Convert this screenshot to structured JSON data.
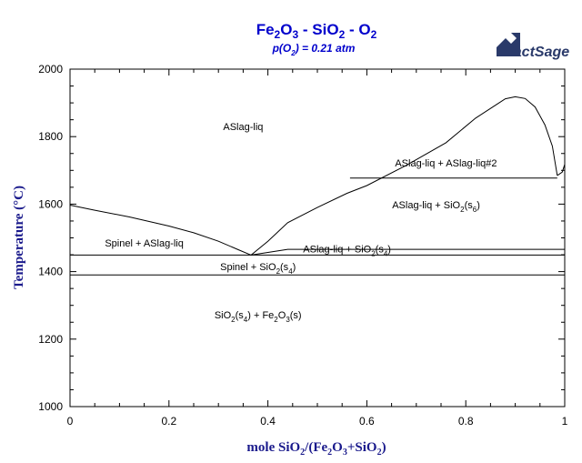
{
  "chart_data": {
    "type": "phase-diagram",
    "title": "Fe2O3 - SiO2 - O2",
    "subtitle": "p(O2) = 0.21 atm",
    "xlabel": "mole SiO2/(Fe2O3+SiO2)",
    "ylabel": "Temperature (°C)",
    "xlim": [
      0,
      1
    ],
    "ylim": [
      1000,
      2000
    ],
    "x_ticks": [
      "0",
      "0.2",
      "0.4",
      "0.6",
      "0.8",
      "1"
    ],
    "y_ticks": [
      "1000",
      "1200",
      "1400",
      "1600",
      "1800",
      "2000"
    ],
    "grid": false,
    "logo": "FactSage",
    "boundaries": [
      {
        "points": [
          [
            0,
            1597
          ],
          [
            0.05,
            1582
          ],
          [
            0.12,
            1562
          ],
          [
            0.2,
            1535
          ],
          [
            0.25,
            1515
          ],
          [
            0.3,
            1490
          ],
          [
            0.34,
            1465
          ],
          [
            0.366,
            1449
          ]
        ]
      },
      {
        "points": [
          [
            0.366,
            1449
          ],
          [
            0.4,
            1490
          ],
          [
            0.44,
            1545
          ],
          [
            0.5,
            1590
          ],
          [
            0.56,
            1632
          ],
          [
            0.6,
            1655
          ],
          [
            0.68,
            1715
          ],
          [
            0.76,
            1782
          ],
          [
            0.82,
            1855
          ],
          [
            0.86,
            1893
          ],
          [
            0.88,
            1912
          ],
          [
            0.9,
            1918
          ],
          [
            0.92,
            1913
          ],
          [
            0.94,
            1888
          ],
          [
            0.96,
            1835
          ],
          [
            0.975,
            1772
          ],
          [
            0.985,
            1685
          ]
        ]
      },
      {
        "points": [
          [
            0.985,
            1685
          ],
          [
            0.995,
            1695
          ],
          [
            1.0,
            1718
          ]
        ]
      },
      {
        "points": [
          [
            0.566,
            1677
          ],
          [
            0.985,
            1677
          ]
        ]
      },
      {
        "points": [
          [
            0.366,
            1449
          ],
          [
            0.44,
            1466
          ],
          [
            1.0,
            1466
          ]
        ]
      },
      {
        "points": [
          [
            0,
            1449
          ],
          [
            1.0,
            1449
          ]
        ]
      },
      {
        "points": [
          [
            0,
            1390
          ],
          [
            1.0,
            1390
          ]
        ]
      }
    ],
    "regions": [
      {
        "text": "ASlag-liq",
        "x": 0.35,
        "y": 1819
      },
      {
        "text": "ASlag-liq + ASlag-liq#2",
        "x": 0.76,
        "y": 1712
      },
      {
        "text": "ASlag-liq + SiO2(s6)",
        "x": 0.74,
        "y": 1587
      },
      {
        "text": "Spinel + ASlag-liq",
        "x": 0.15,
        "y": 1475
      },
      {
        "text": "ASlag-liq + SiO2(s4)",
        "x": 0.56,
        "y": 1457
      },
      {
        "text": "Spinel + SiO2(s4)",
        "x": 0.38,
        "y": 1404
      },
      {
        "text": "SiO2(s4) + Fe2O3(s)",
        "x": 0.38,
        "y": 1261
      }
    ]
  }
}
